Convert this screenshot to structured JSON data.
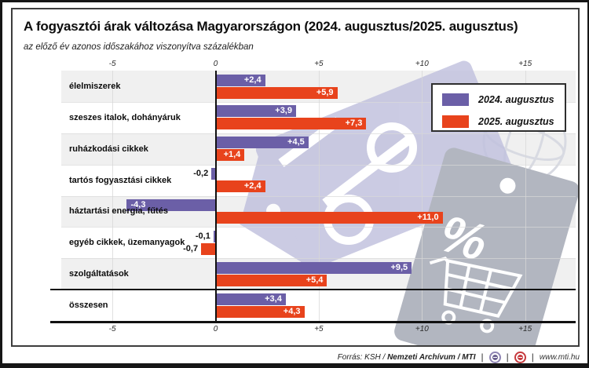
{
  "title": "A fogyasztói árak változása Magyarországon (2024. augusztus/2025. augusztus)",
  "subtitle": "az előző év azonos időszakához viszonyítva százalékban",
  "legend": {
    "items": [
      {
        "label": "2024. augusztus",
        "color": "#6b5fa7"
      },
      {
        "label": "2025. augusztus",
        "color": "#e8431c"
      }
    ]
  },
  "colors": {
    "series1": "#6b5fa7",
    "series2": "#e8431c",
    "row_band": "#f0f0f0",
    "grid": "#d9d9d9",
    "axis": "#111111",
    "watermark_lavender": "#bfbfdd",
    "watermark_gray": "#b2b6c0"
  },
  "chart_data": {
    "type": "bar",
    "orientation": "horizontal",
    "title": "A fogyasztói árak változása Magyarországon (2024. augusztus/2025. augusztus)",
    "subtitle": "az előző év azonos időszakához viszonyítva százalékban",
    "xlabel": "",
    "ylabel": "",
    "xlim": [
      -7.5,
      17.5
    ],
    "grid": true,
    "legend_position": "top-right",
    "axis_ticks": [
      -5,
      0,
      5,
      10,
      15
    ],
    "axis_tick_labels": [
      "-5",
      "0",
      "+5",
      "+10",
      "+15"
    ],
    "categories": [
      "élelmiszerek",
      "szeszes italok, dohányáruk",
      "ruházkodási cikkek",
      "tartós fogyasztási cikkek",
      "háztartási energia, fűtés",
      "egyéb cikkek, üzemanyagok",
      "szolgáltatások",
      "összesen"
    ],
    "separator_before_category": "összesen",
    "series": [
      {
        "name": "2024. augusztus",
        "color": "#6b5fa7",
        "values": [
          2.4,
          3.9,
          4.5,
          -0.2,
          -4.3,
          -0.1,
          9.5,
          3.4
        ],
        "labels": [
          "+2,4",
          "+3,9",
          "+4,5",
          "-0,2",
          "-4,3",
          "-0,1",
          "+9,5",
          "+3,4"
        ]
      },
      {
        "name": "2025. augusztus",
        "color": "#e8431c",
        "values": [
          5.9,
          7.3,
          1.4,
          2.4,
          11.0,
          -0.7,
          5.4,
          4.3
        ],
        "labels": [
          "+5,9",
          "+7,3",
          "+1,4",
          "+2,4",
          "+11,0",
          "-0,7",
          "+5,4",
          "+4,3"
        ]
      }
    ]
  },
  "footer": {
    "source_prefix": "Forrás: KSH /",
    "source_bold1": "Nemzeti Archívum",
    "source_sep": "/",
    "source_bold2": "MTI",
    "website": "www.mti.hu",
    "logo1": "MTVA",
    "logo2": "MTI"
  }
}
